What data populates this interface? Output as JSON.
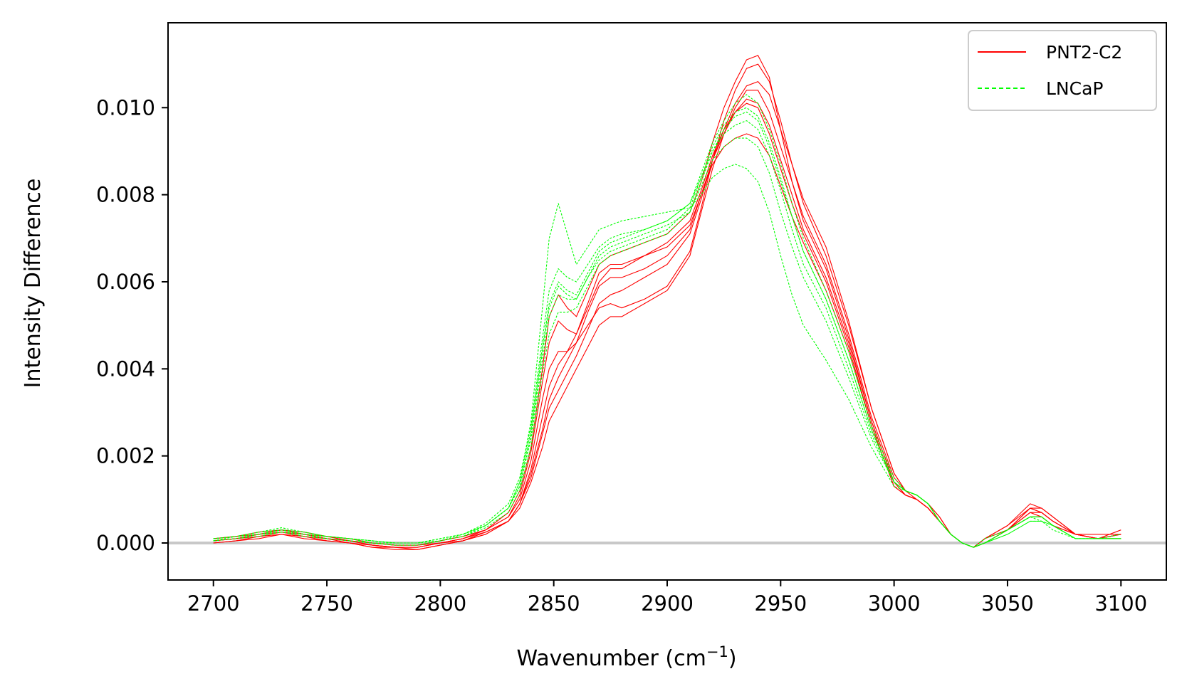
{
  "chart_data": {
    "type": "line",
    "xlabel": "Wavenumber (cm",
    "xlabel_sup": "−1",
    "xlabel_end": ")",
    "ylabel": "Intensity Difference",
    "xlim": [
      2680,
      3120
    ],
    "ylim": [
      -0.00085,
      0.01195
    ],
    "x_ticks": [
      2700,
      2750,
      2800,
      2850,
      2900,
      2950,
      3000,
      3050,
      3100
    ],
    "x_tick_labels": [
      "2700",
      "2750",
      "2800",
      "2850",
      "2900",
      "2950",
      "3000",
      "3050",
      "3100"
    ],
    "y_ticks": [
      0,
      0.002,
      0.004,
      0.006,
      0.008,
      0.01
    ],
    "y_tick_labels": [
      "0.000",
      "0.002",
      "0.004",
      "0.006",
      "0.008",
      "0.010"
    ],
    "baseline": {
      "y": 0,
      "color": "#c8c8c8"
    },
    "legend": {
      "position": "top-right",
      "entries": [
        {
          "label": "PNT2-C2",
          "color": "#ff0000",
          "style": "solid"
        },
        {
          "label": "LNCaP",
          "color": "#00ff00",
          "style": "dashed"
        }
      ]
    },
    "x": [
      2700,
      2710,
      2720,
      2730,
      2740,
      2750,
      2760,
      2770,
      2780,
      2790,
      2800,
      2810,
      2820,
      2830,
      2835,
      2840,
      2845,
      2848,
      2852,
      2856,
      2860,
      2865,
      2870,
      2875,
      2880,
      2890,
      2900,
      2910,
      2915,
      2920,
      2925,
      2930,
      2935,
      2940,
      2945,
      2950,
      2955,
      2960,
      2970,
      2980,
      2990,
      3000,
      3005,
      3010,
      3015,
      3020,
      3025,
      3030,
      3035,
      3040,
      3050,
      3060,
      3065,
      3070,
      3080,
      3090,
      3100
    ],
    "series": [
      {
        "group": "PNT2-C2",
        "color": "#ff0000",
        "dashed": false,
        "values": [
          5e-05,
          0.0001,
          0.0002,
          0.0003,
          0.0002,
          0.0001,
          5e-05,
          -5e-05,
          -0.0001,
          -0.0001,
          0.0,
          0.0001,
          0.0003,
          0.0007,
          0.0012,
          0.0022,
          0.004,
          0.0052,
          0.0057,
          0.0054,
          0.0052,
          0.0058,
          0.0064,
          0.0066,
          0.0067,
          0.0069,
          0.0071,
          0.0076,
          0.0083,
          0.0092,
          0.01,
          0.0106,
          0.0111,
          0.0112,
          0.0107,
          0.0095,
          0.0083,
          0.0074,
          0.0063,
          0.0047,
          0.0028,
          0.0014,
          0.0011,
          0.001,
          0.0008,
          0.0005,
          0.0002,
          0.0,
          -0.0001,
          0.0001,
          0.0004,
          0.0009,
          0.0008,
          0.0006,
          0.0002,
          0.0001,
          0.0002
        ]
      },
      {
        "group": "PNT2-C2",
        "color": "#ff0000",
        "dashed": false,
        "values": [
          0.0,
          5e-05,
          0.00015,
          0.00025,
          0.00015,
          5e-05,
          0.0,
          -0.0001,
          -0.00015,
          -0.00015,
          -5e-05,
          5e-05,
          0.0002,
          0.0005,
          0.0009,
          0.0016,
          0.0026,
          0.0033,
          0.0038,
          0.0042,
          0.0046,
          0.005,
          0.0054,
          0.0055,
          0.0054,
          0.0056,
          0.0059,
          0.0067,
          0.0077,
          0.0088,
          0.0097,
          0.0104,
          0.0109,
          0.011,
          0.0106,
          0.0097,
          0.0087,
          0.0078,
          0.0066,
          0.005,
          0.0031,
          0.0016,
          0.0012,
          0.0011,
          0.0009,
          0.0006,
          0.0002,
          0.0,
          -0.0001,
          0.0,
          0.0003,
          0.0008,
          0.0007,
          0.0005,
          0.0002,
          0.0001,
          0.0003
        ]
      },
      {
        "group": "PNT2-C2",
        "color": "#ff0000",
        "dashed": false,
        "values": [
          0.0001,
          0.00015,
          0.0002,
          0.0003,
          0.0002,
          0.00015,
          5e-05,
          0.0,
          -5e-05,
          -5e-05,
          0.0,
          0.0001,
          0.0003,
          0.0006,
          0.001,
          0.0019,
          0.0033,
          0.004,
          0.0044,
          0.0044,
          0.0046,
          0.0053,
          0.0059,
          0.0061,
          0.0061,
          0.0063,
          0.0066,
          0.0072,
          0.008,
          0.0088,
          0.0094,
          0.0099,
          0.0101,
          0.01,
          0.0094,
          0.0086,
          0.0078,
          0.0071,
          0.006,
          0.0045,
          0.0027,
          0.0013,
          0.0011,
          0.001,
          0.0008,
          0.0005,
          0.0002,
          0.0,
          -0.0001,
          0.0001,
          0.0004,
          0.0008,
          0.0007,
          0.0005,
          0.0002,
          0.0001,
          0.0001
        ]
      },
      {
        "group": "PNT2-C2",
        "color": "#ff0000",
        "dashed": false,
        "values": [
          5e-05,
          0.0001,
          0.00015,
          0.0002,
          0.00015,
          0.0001,
          0.0,
          -5e-05,
          -0.0001,
          -0.0001,
          0.0,
          5e-05,
          0.00025,
          0.0005,
          0.0008,
          0.0014,
          0.0022,
          0.0028,
          0.0032,
          0.0036,
          0.004,
          0.0045,
          0.005,
          0.0052,
          0.0052,
          0.0055,
          0.0058,
          0.0066,
          0.0076,
          0.0086,
          0.0094,
          0.01,
          0.0104,
          0.0104,
          0.0099,
          0.0091,
          0.0083,
          0.0075,
          0.0064,
          0.0048,
          0.0029,
          0.0015,
          0.0012,
          0.001,
          0.0008,
          0.0005,
          0.0002,
          0.0,
          -0.0001,
          0.0,
          0.0003,
          0.0007,
          0.0007,
          0.0005,
          0.0002,
          0.0002,
          0.0002
        ]
      },
      {
        "group": "PNT2-C2",
        "color": "#ff0000",
        "dashed": false,
        "values": [
          0.0,
          5e-05,
          0.0001,
          0.0002,
          0.0001,
          5e-05,
          0.0,
          -0.0001,
          -0.0001,
          -0.00015,
          -5e-05,
          5e-05,
          0.0002,
          0.0005,
          0.0009,
          0.0017,
          0.0029,
          0.0036,
          0.0041,
          0.0044,
          0.0048,
          0.0054,
          0.006,
          0.0063,
          0.0063,
          0.0066,
          0.0069,
          0.0074,
          0.0081,
          0.0089,
          0.0095,
          0.0099,
          0.0102,
          0.0101,
          0.0096,
          0.0088,
          0.008,
          0.0072,
          0.0061,
          0.0046,
          0.0028,
          0.0014,
          0.0011,
          0.001,
          0.0008,
          0.0005,
          0.0002,
          0.0,
          -0.0001,
          0.0001,
          0.0003,
          0.0007,
          0.0006,
          0.0004,
          0.0002,
          0.0001,
          0.0002
        ]
      },
      {
        "group": "PNT2-C2",
        "color": "#ff0000",
        "dashed": false,
        "values": [
          0.0001,
          0.00015,
          0.00025,
          0.0003,
          0.00025,
          0.00015,
          0.0001,
          0.0,
          -5e-05,
          -5e-05,
          5e-05,
          0.00015,
          0.0003,
          0.0006,
          0.0011,
          0.0021,
          0.0037,
          0.0046,
          0.0051,
          0.0049,
          0.0048,
          0.0055,
          0.0062,
          0.0064,
          0.0064,
          0.0066,
          0.0068,
          0.0073,
          0.008,
          0.0087,
          0.0091,
          0.0093,
          0.0094,
          0.0093,
          0.0089,
          0.0082,
          0.0075,
          0.0069,
          0.0058,
          0.0044,
          0.0027,
          0.0013,
          0.0011,
          0.001,
          0.0008,
          0.0005,
          0.0002,
          0.0,
          -0.0001,
          0.0001,
          0.0003,
          0.0006,
          0.0006,
          0.0004,
          0.0002,
          0.0001,
          0.0001
        ]
      },
      {
        "group": "PNT2-C2",
        "color": "#ff0000",
        "dashed": false,
        "values": [
          5e-05,
          0.0001,
          0.0002,
          0.00025,
          0.0002,
          0.0001,
          5e-05,
          -5e-05,
          -0.0001,
          -0.0001,
          0.0,
          0.0001,
          0.00025,
          0.0005,
          0.0009,
          0.0015,
          0.0025,
          0.0031,
          0.0035,
          0.0039,
          0.0043,
          0.0049,
          0.0055,
          0.0057,
          0.0058,
          0.0061,
          0.0064,
          0.0071,
          0.0079,
          0.0088,
          0.0095,
          0.0101,
          0.0105,
          0.0106,
          0.0103,
          0.0095,
          0.0087,
          0.0079,
          0.0068,
          0.0051,
          0.0031,
          0.0016,
          0.0012,
          0.0011,
          0.0009,
          0.0006,
          0.0002,
          0.0,
          -0.0001,
          0.0,
          0.0003,
          0.0008,
          0.0008,
          0.0006,
          0.0002,
          0.0001,
          0.0002
        ]
      },
      {
        "group": "LNCaP",
        "color": "#00ff00",
        "dashed": true,
        "values": [
          5e-05,
          0.00015,
          0.00025,
          0.00035,
          0.00025,
          0.00015,
          0.0001,
          5e-05,
          0.0,
          0.0,
          5e-05,
          0.0002,
          0.0004,
          0.0008,
          0.0014,
          0.0028,
          0.0054,
          0.007,
          0.0078,
          0.0071,
          0.0064,
          0.0068,
          0.0072,
          0.0073,
          0.0074,
          0.0075,
          0.0076,
          0.0077,
          0.008,
          0.0084,
          0.0086,
          0.0087,
          0.0086,
          0.0083,
          0.0076,
          0.0066,
          0.0057,
          0.005,
          0.0042,
          0.0033,
          0.0022,
          0.0013,
          0.0012,
          0.0011,
          0.0009,
          0.0005,
          0.0002,
          0.0,
          -0.0001,
          0.0,
          0.0002,
          0.0005,
          0.0005,
          0.0003,
          0.0001,
          0.0001,
          0.0001
        ]
      },
      {
        "group": "LNCaP",
        "color": "#00ff00",
        "dashed": true,
        "values": [
          0.0001,
          0.00015,
          0.0002,
          0.0003,
          0.0002,
          0.00015,
          0.0001,
          0.0,
          0.0,
          0.0,
          0.0001,
          0.0002,
          0.0004,
          0.0008,
          0.0013,
          0.0024,
          0.0042,
          0.0052,
          0.0057,
          0.0056,
          0.0056,
          0.0061,
          0.0066,
          0.0068,
          0.0069,
          0.0071,
          0.0073,
          0.0076,
          0.0082,
          0.0088,
          0.0091,
          0.0093,
          0.0093,
          0.0091,
          0.0085,
          0.0076,
          0.0068,
          0.0061,
          0.0051,
          0.0038,
          0.0024,
          0.0014,
          0.0012,
          0.0011,
          0.0009,
          0.0005,
          0.0002,
          0.0,
          -0.0001,
          0.0,
          0.0003,
          0.0006,
          0.0005,
          0.0004,
          0.0001,
          0.0001,
          0.0001
        ]
      },
      {
        "group": "LNCaP",
        "color": "#00ff00",
        "dashed": true,
        "values": [
          5e-05,
          0.0001,
          0.0002,
          0.00025,
          0.0002,
          0.0001,
          5e-05,
          0.0,
          -5e-05,
          -5e-05,
          5e-05,
          0.00015,
          0.0004,
          0.0008,
          0.0013,
          0.0025,
          0.0044,
          0.0054,
          0.0059,
          0.0057,
          0.0056,
          0.0061,
          0.0065,
          0.0067,
          0.0068,
          0.007,
          0.0072,
          0.0077,
          0.0084,
          0.0091,
          0.0096,
          0.0099,
          0.01,
          0.0098,
          0.0092,
          0.0084,
          0.0075,
          0.0067,
          0.0056,
          0.0042,
          0.0026,
          0.0014,
          0.0012,
          0.0011,
          0.0009,
          0.0005,
          0.0002,
          0.0,
          -0.0001,
          0.0001,
          0.0003,
          0.0006,
          0.0006,
          0.0004,
          0.0001,
          0.0001,
          0.0001
        ]
      },
      {
        "group": "LNCaP",
        "color": "#00ff00",
        "dashed": true,
        "values": [
          0.0001,
          0.00015,
          0.00025,
          0.0003,
          0.00025,
          0.00015,
          0.0001,
          5e-05,
          0.0,
          0.0,
          0.0001,
          0.0002,
          0.00045,
          0.0009,
          0.0015,
          0.0027,
          0.0047,
          0.0058,
          0.0063,
          0.0061,
          0.006,
          0.0064,
          0.0068,
          0.007,
          0.0071,
          0.0072,
          0.0074,
          0.0078,
          0.0084,
          0.009,
          0.0094,
          0.0096,
          0.0097,
          0.0095,
          0.0089,
          0.0081,
          0.0072,
          0.0064,
          0.0054,
          0.004,
          0.0025,
          0.0014,
          0.0012,
          0.0011,
          0.0009,
          0.0005,
          0.0002,
          0.0,
          -0.0001,
          0.0,
          0.0002,
          0.0005,
          0.0005,
          0.0004,
          0.0001,
          0.0001,
          0.0001
        ]
      },
      {
        "group": "LNCaP",
        "color": "#00ff00",
        "dashed": true,
        "values": [
          5e-05,
          0.0001,
          0.00015,
          0.00025,
          0.00015,
          0.0001,
          5e-05,
          0.0,
          -5e-05,
          -5e-05,
          5e-05,
          0.00015,
          0.00035,
          0.0007,
          0.0012,
          0.0022,
          0.0039,
          0.0048,
          0.0053,
          0.0053,
          0.0054,
          0.0059,
          0.0064,
          0.0066,
          0.0067,
          0.0069,
          0.0071,
          0.0076,
          0.0083,
          0.009,
          0.0095,
          0.0098,
          0.0099,
          0.0097,
          0.0091,
          0.0083,
          0.0075,
          0.0067,
          0.0056,
          0.0042,
          0.0026,
          0.0014,
          0.0012,
          0.0011,
          0.0009,
          0.0005,
          0.0002,
          0.0,
          -0.0001,
          0.0,
          0.0003,
          0.0006,
          0.0006,
          0.0004,
          0.0001,
          0.0001,
          0.0002
        ]
      },
      {
        "group": "LNCaP",
        "color": "#00ff00",
        "dashed": true,
        "values": [
          0.0001,
          0.00015,
          0.0002,
          0.0003,
          0.0002,
          0.00015,
          0.0001,
          5e-05,
          0.0,
          0.0,
          0.0001,
          0.0002,
          0.0004,
          0.0008,
          0.0014,
          0.0026,
          0.0045,
          0.0055,
          0.006,
          0.0058,
          0.0057,
          0.0062,
          0.0067,
          0.0069,
          0.007,
          0.0072,
          0.0074,
          0.0078,
          0.0085,
          0.0092,
          0.0097,
          0.0101,
          0.0103,
          0.0101,
          0.0095,
          0.0087,
          0.0078,
          0.007,
          0.0058,
          0.0044,
          0.0027,
          0.0015,
          0.0012,
          0.0011,
          0.0009,
          0.0005,
          0.0002,
          0.0,
          -0.0001,
          0.0,
          0.0003,
          0.0006,
          0.0006,
          0.0004,
          0.0001,
          0.0001,
          0.0001
        ]
      }
    ]
  }
}
